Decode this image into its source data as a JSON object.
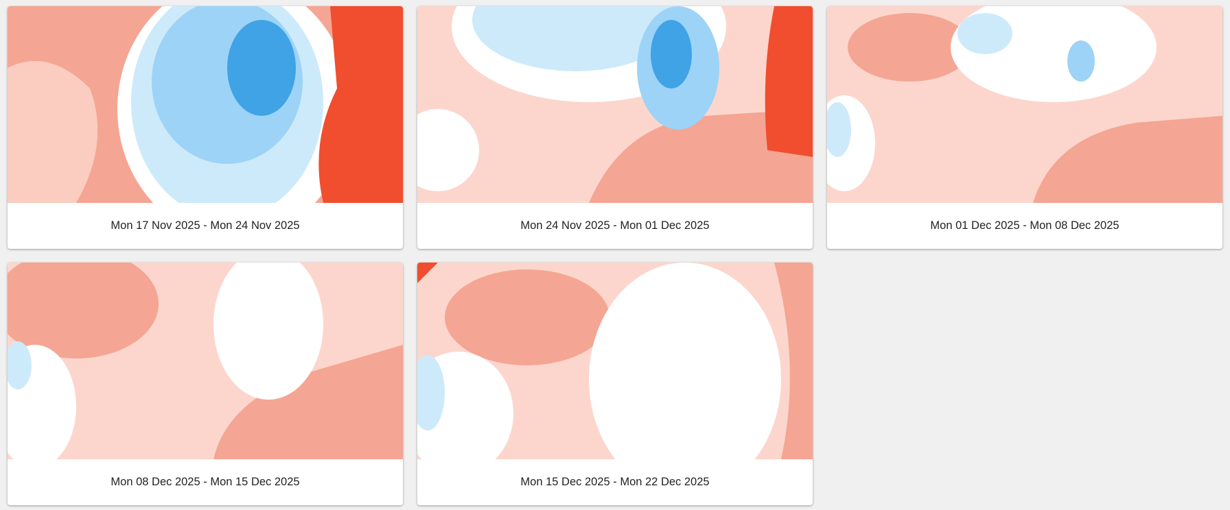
{
  "colors": {
    "strong_warm": "#f04e2e",
    "warm": "#f5a593",
    "mild_warm": "#fcd6cc",
    "neutral": "#ffffff",
    "mild_cold": "#cdeafb",
    "cold": "#9dd3f6",
    "strong_cold": "#3fa3e6"
  },
  "cards": [
    {
      "label": "Mon 17 Nov 2025 - Mon 24 Nov 2025",
      "pattern": "cold-north"
    },
    {
      "label": "Mon 24 Nov 2025 - Mon 01 Dec 2025",
      "pattern": "cold-scandinavia"
    },
    {
      "label": "Mon 01 Dec 2025 - Mon 08 Dec 2025",
      "pattern": "mild-warm"
    },
    {
      "label": "Mon 08 Dec 2025 - Mon 15 Dec 2025",
      "pattern": "warm-west"
    },
    {
      "label": "Mon 15 Dec 2025 - Mon 22 Dec 2025",
      "pattern": "neutral-central"
    }
  ]
}
